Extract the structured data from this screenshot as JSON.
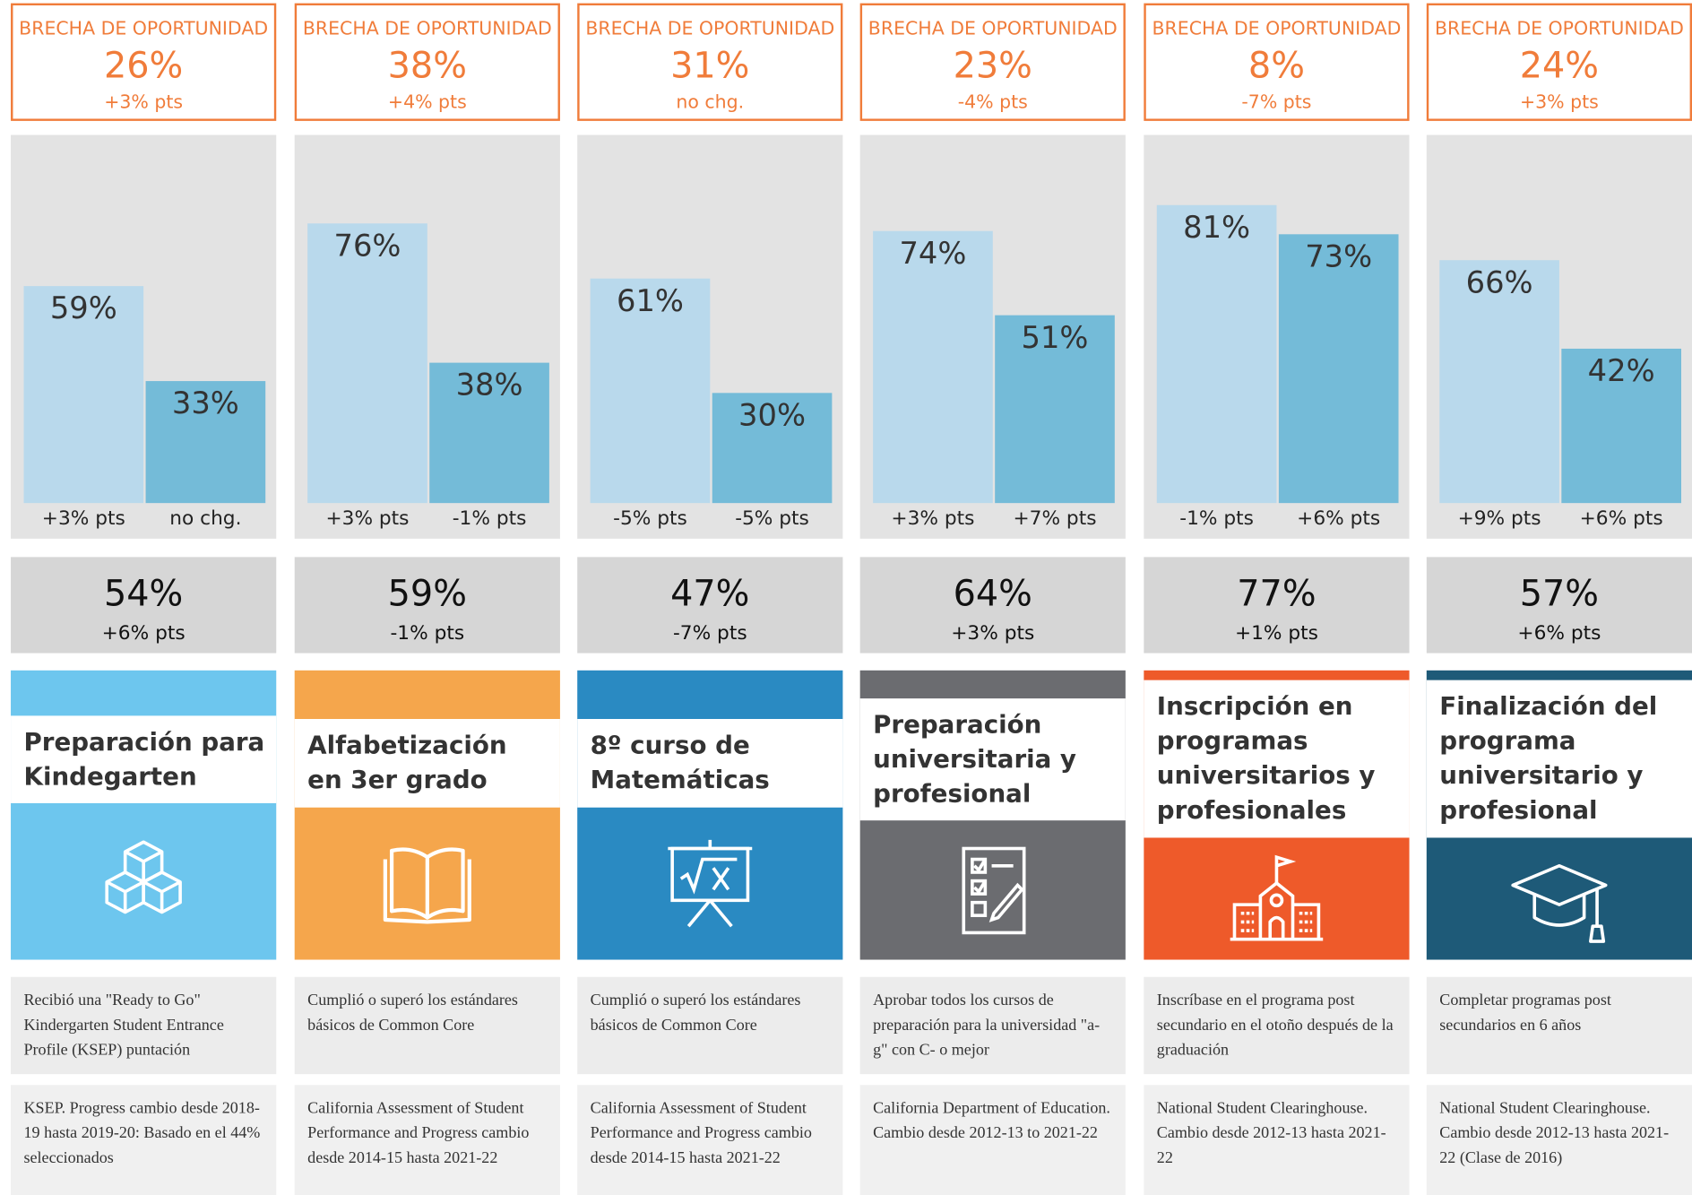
{
  "columns": [
    {
      "gap": {
        "label": "BRECHA DE OPORTUNIDAD",
        "value": "26%",
        "change": "+3% pts"
      },
      "chart": {
        "type": "bar",
        "values": [
          59,
          33
        ],
        "value_labels": [
          "59%",
          "33%"
        ],
        "changes": [
          "+3% pts",
          "no chg."
        ],
        "ylim": [
          0,
          100
        ],
        "colors": [
          "#b9d9ec",
          "#74bbd8"
        ]
      },
      "overall": {
        "value": "54%",
        "change": "+6% pts"
      },
      "title": "Preparación para Kindegarten",
      "color": "#6dc6ee",
      "description": "Recibió una \"Ready to Go\" Kindergarten Student Entrance Profile (KSEP) puntación",
      "source": "KSEP. Progress cambio desde 2018-19 hasta 2019-20: Basado en el 44% seleccionados"
    },
    {
      "gap": {
        "label": "BRECHA DE OPORTUNIDAD",
        "value": "38%",
        "change": "+4% pts"
      },
      "chart": {
        "type": "bar",
        "values": [
          76,
          38
        ],
        "value_labels": [
          "76%",
          "38%"
        ],
        "changes": [
          "+3% pts",
          "-1% pts"
        ],
        "ylim": [
          0,
          100
        ],
        "colors": [
          "#b9d9ec",
          "#74bbd8"
        ]
      },
      "overall": {
        "value": "59%",
        "change": "-1% pts"
      },
      "title": "Alfabetización en 3er grado",
      "color": "#f5a64c",
      "description": "Cumplió o superó los estándares básicos de Common Core",
      "source": "California Assessment of Student Performance and Progress cambio desde 2014-15 hasta 2021-22"
    },
    {
      "gap": {
        "label": "BRECHA DE OPORTUNIDAD",
        "value": "31%",
        "change": "no chg."
      },
      "chart": {
        "type": "bar",
        "values": [
          61,
          30
        ],
        "value_labels": [
          "61%",
          "30%"
        ],
        "changes": [
          "-5% pts",
          "-5% pts"
        ],
        "ylim": [
          0,
          100
        ],
        "colors": [
          "#b9d9ec",
          "#74bbd8"
        ]
      },
      "overall": {
        "value": "47%",
        "change": "-7% pts"
      },
      "title": "8º curso de Matemáticas",
      "color": "#2a8ac2",
      "description": "Cumplió o superó los estándares básicos de Common Core",
      "source": "California Assessment of Student Performance and Progress cambio desde 2014-15 hasta 2021-22"
    },
    {
      "gap": {
        "label": "BRECHA DE OPORTUNIDAD",
        "value": "23%",
        "change": "-4% pts"
      },
      "chart": {
        "type": "bar",
        "values": [
          74,
          51
        ],
        "value_labels": [
          "74%",
          "51%"
        ],
        "changes": [
          "+3% pts",
          "+7% pts"
        ],
        "ylim": [
          0,
          100
        ],
        "colors": [
          "#b9d9ec",
          "#74bbd8"
        ]
      },
      "overall": {
        "value": "64%",
        "change": "+3% pts"
      },
      "title": "Preparación universitaria y profesional",
      "color": "#6b6c70",
      "description": "Aprobar todos los cursos de preparación para la universidad \"a-g\" con C- o mejor",
      "source": "California Department of Education. Cambio desde 2012-13 to 2021-22"
    },
    {
      "gap": {
        "label": "BRECHA DE OPORTUNIDAD",
        "value": "8%",
        "change": "-7% pts"
      },
      "chart": {
        "type": "bar",
        "values": [
          81,
          73
        ],
        "value_labels": [
          "81%",
          "73%"
        ],
        "changes": [
          "-1% pts",
          "+6% pts"
        ],
        "ylim": [
          0,
          100
        ],
        "colors": [
          "#b9d9ec",
          "#74bbd8"
        ]
      },
      "overall": {
        "value": "77%",
        "change": "+1% pts"
      },
      "title": "Inscripción en programas universitarios y profesionales",
      "color": "#ee5a2a",
      "description": "Inscríbase en el programa post secundario en el otoño después de la graduación",
      "source": "National Student Clearinghouse. Cambio desde 2012-13 hasta 2021-22"
    },
    {
      "gap": {
        "label": "BRECHA DE OPORTUNIDAD",
        "value": "24%",
        "change": "+3% pts"
      },
      "chart": {
        "type": "bar",
        "values": [
          66,
          42
        ],
        "value_labels": [
          "66%",
          "42%"
        ],
        "changes": [
          "+9% pts",
          "+6% pts"
        ],
        "ylim": [
          0,
          100
        ],
        "colors": [
          "#b9d9ec",
          "#74bbd8"
        ]
      },
      "overall": {
        "value": "57%",
        "change": "+6% pts"
      },
      "title": "Finalización del programa universitario y profesional",
      "color": "#1e5a78",
      "description": "Completar programas post secundarios en 6 años",
      "source": "National Student Clearinghouse. Cambio desde 2012-13 hasta 2021-22 (Clase de 2016)"
    }
  ]
}
